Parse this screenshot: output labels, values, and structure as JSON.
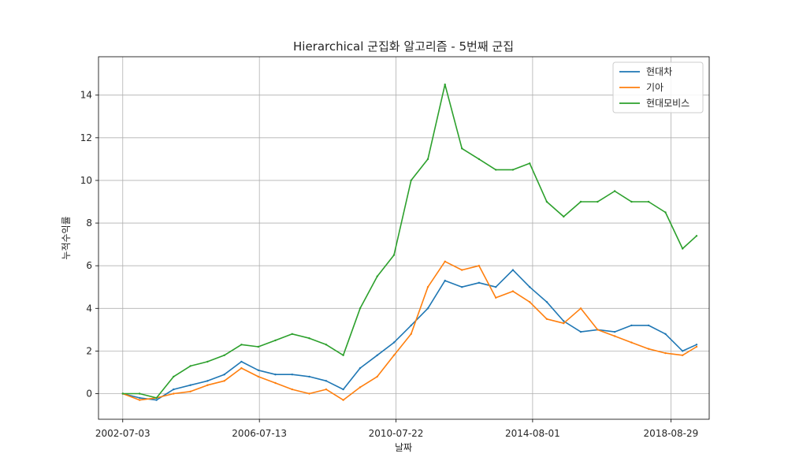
{
  "chart_data": {
    "type": "line",
    "title": "Hierarchical 군집화 알고리즘 - 5번째 군집",
    "xlabel": "날짜",
    "ylabel": "누적수익률",
    "xlim": [
      "2001-10-15",
      "2019-10-15"
    ],
    "ylim": [
      -1.2,
      15.8
    ],
    "x_ticks": [
      "2002-07-03",
      "2006-07-13",
      "2010-07-22",
      "2014-08-01",
      "2018-08-29"
    ],
    "y_ticks": [
      0,
      2,
      4,
      6,
      8,
      10,
      12,
      14
    ],
    "grid": true,
    "legend_position": "top-right",
    "x": [
      "2002-07-03",
      "2003-01-01",
      "2003-07-01",
      "2004-01-01",
      "2004-07-01",
      "2005-01-01",
      "2005-07-01",
      "2006-01-01",
      "2006-07-01",
      "2007-01-01",
      "2007-07-01",
      "2008-01-01",
      "2008-07-01",
      "2009-01-01",
      "2009-07-01",
      "2010-01-01",
      "2010-07-01",
      "2011-01-01",
      "2011-07-01",
      "2012-01-01",
      "2012-07-01",
      "2013-01-01",
      "2013-07-01",
      "2014-01-01",
      "2014-07-01",
      "2015-01-01",
      "2015-07-01",
      "2016-01-01",
      "2016-07-01",
      "2017-01-01",
      "2017-07-01",
      "2018-01-01",
      "2018-07-01",
      "2019-01-01",
      "2019-06-01"
    ],
    "series": [
      {
        "name": "현대차",
        "color": "#1f77b4",
        "values": [
          0.0,
          -0.2,
          -0.3,
          0.2,
          0.4,
          0.6,
          0.9,
          1.5,
          1.1,
          0.9,
          0.9,
          0.8,
          0.6,
          0.2,
          1.2,
          1.8,
          2.4,
          3.2,
          4.0,
          5.3,
          5.0,
          5.2,
          5.0,
          5.8,
          5.0,
          4.3,
          3.4,
          2.9,
          3.0,
          2.9,
          3.2,
          3.2,
          2.8,
          2.0,
          2.3
        ]
      },
      {
        "name": "기아",
        "color": "#ff7f0e",
        "values": [
          0.0,
          -0.3,
          -0.2,
          0.0,
          0.1,
          0.4,
          0.6,
          1.2,
          0.8,
          0.5,
          0.2,
          0.0,
          0.2,
          -0.3,
          0.3,
          0.8,
          1.8,
          2.8,
          5.0,
          6.2,
          5.8,
          6.0,
          4.5,
          4.8,
          4.3,
          3.5,
          3.3,
          4.0,
          3.0,
          2.7,
          2.4,
          2.1,
          1.9,
          1.8,
          2.2
        ]
      },
      {
        "name": "현대모비스",
        "color": "#2ca02c",
        "values": [
          0.0,
          0.0,
          -0.2,
          0.8,
          1.3,
          1.5,
          1.8,
          2.3,
          2.2,
          2.5,
          2.8,
          2.6,
          2.3,
          1.8,
          4.0,
          5.5,
          6.5,
          10.0,
          11.0,
          14.5,
          11.5,
          11.0,
          10.5,
          10.5,
          10.8,
          9.0,
          8.3,
          9.0,
          9.0,
          9.5,
          9.0,
          9.0,
          8.5,
          6.8,
          7.4
        ]
      }
    ]
  }
}
